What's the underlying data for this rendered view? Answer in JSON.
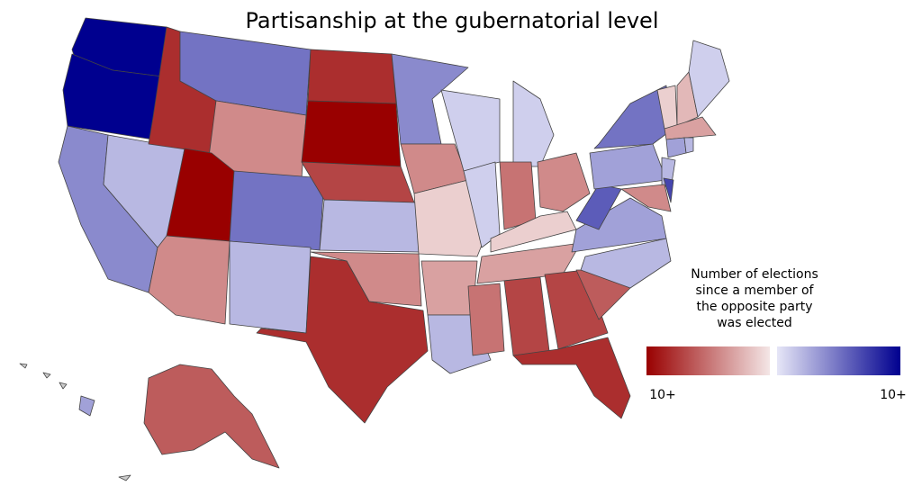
{
  "chart_data": {
    "type": "choropleth",
    "title": "Partisanship at the gubernatorial level",
    "legend_title": [
      "Number of elections",
      "since a member of",
      "the opposite party",
      "was elected"
    ],
    "colors": [
      "#990000",
      "#f4e6e6",
      "#e6e6f7",
      "#00008f"
    ],
    "colorbar_ticks": [
      {
        "value": -10,
        "label": "10+"
      },
      {
        "value": 10,
        "label": "10+"
      }
    ],
    "values": [
      10,
      10,
      4,
      2,
      -8,
      5,
      -4,
      -10,
      -4,
      5,
      2,
      -8,
      -10,
      -7,
      2,
      -4,
      -8,
      4,
      -4,
      -1,
      -3,
      2,
      1,
      1,
      1,
      -5,
      -4,
      -1,
      -3,
      -5,
      -7,
      -7,
      -8,
      -6,
      2,
      3,
      6,
      3,
      5,
      2,
      7,
      -4,
      -1,
      -2,
      1,
      -3,
      3,
      2,
      -6,
      3
    ]
  }
}
